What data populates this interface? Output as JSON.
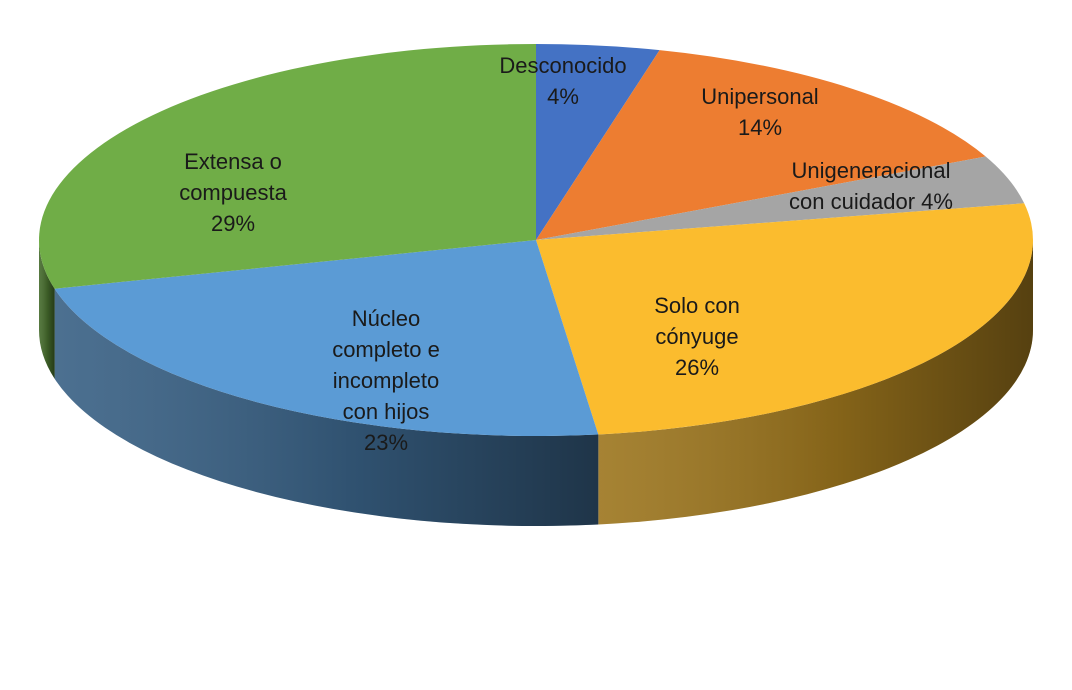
{
  "chart_data": {
    "type": "pie",
    "style": "3d",
    "title": "",
    "slices": [
      {
        "name": "Desconocido",
        "value": 4,
        "label": [
          "Desconocido",
          "4%"
        ],
        "color": "#4472C4"
      },
      {
        "name": "Unipersonal",
        "value": 14,
        "label": [
          "Unipersonal",
          "14%"
        ],
        "color": "#ED7D31"
      },
      {
        "name": "Unigeneracional con cuidador",
        "value": 4,
        "label": [
          "Unigeneracional",
          "con cuidador 4%"
        ],
        "color": "#A5A5A5"
      },
      {
        "name": "Solo con cónyuge",
        "value": 26,
        "label": [
          "Solo con",
          "cónyuge",
          "26%"
        ],
        "color": "#FBBC2E"
      },
      {
        "name": "Núcleo completo e incompleto con hijos",
        "value": 23,
        "label": [
          "Núcleo",
          "completo e",
          "incompleto",
          "con hijos",
          "23%"
        ],
        "color": "#5B9BD5"
      },
      {
        "name": "Extensa o compuesta",
        "value": 29,
        "label": [
          "Extensa o",
          "compuesta",
          "29%"
        ],
        "color": "#70AD47"
      }
    ],
    "legend": "none"
  }
}
